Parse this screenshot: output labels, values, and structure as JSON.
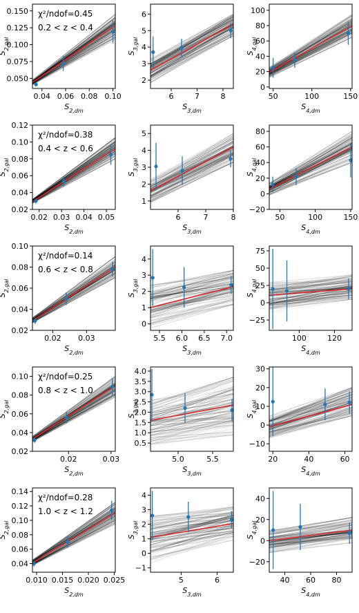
{
  "colors": {
    "points": "#1f77b4",
    "fit": "#d62728",
    "samples": "#000000",
    "frame": "#000000"
  },
  "chart_data": [
    {
      "type": "scatter",
      "row": 0,
      "col": 0,
      "annotation": {
        "chi": "χ²/ndof=0.45",
        "zrange": "0.2 < z < 0.4"
      },
      "xlabel": "S2,dm",
      "ylabel": "S2,gal",
      "xlim": [
        0.032,
        0.102
      ],
      "ylim": [
        0.035,
        0.16
      ],
      "xticks": [
        0.04,
        0.06,
        0.08,
        0.1
      ],
      "xticklabels": [
        "0.04",
        "0.06",
        "0.08",
        "0.10"
      ],
      "yticks": [
        0.05,
        0.075,
        0.1,
        0.125,
        0.15
      ],
      "yticklabels": [
        "0.050",
        "0.075",
        "0.100",
        "0.125",
        "0.150"
      ],
      "points": [
        {
          "x": 0.035,
          "y": 0.041,
          "err": 0.003
        },
        {
          "x": 0.058,
          "y": 0.072,
          "err": 0.011
        },
        {
          "x": 0.1,
          "y": 0.119,
          "err": 0.017
        }
      ],
      "fit": [
        [
          0.032,
          0.044
        ],
        [
          0.102,
          0.128
        ]
      ],
      "spread": {
        "low": [
          [
            0.032,
            0.04
          ],
          [
            0.102,
            0.108
          ]
        ],
        "high": [
          [
            0.032,
            0.048
          ],
          [
            0.102,
            0.145
          ]
        ]
      }
    },
    {
      "type": "scatter",
      "row": 0,
      "col": 1,
      "xlabel": "S3,dm",
      "ylabel": "S3,gal",
      "xlim": [
        5.2,
        8.4
      ],
      "ylim": [
        1.5,
        6.6
      ],
      "xticks": [
        6,
        7,
        8
      ],
      "xticklabels": [
        "6",
        "7",
        "8"
      ],
      "yticks": [
        2,
        3,
        4,
        5,
        6
      ],
      "yticklabels": [
        "2",
        "3",
        "4",
        "5",
        "6"
      ],
      "points": [
        {
          "x": 5.3,
          "y": 3.7,
          "err": 0.95
        },
        {
          "x": 6.4,
          "y": 3.95,
          "err": 0.55
        },
        {
          "x": 8.3,
          "y": 5.0,
          "err": 0.45
        }
      ],
      "fit": [
        [
          5.2,
          2.6
        ],
        [
          8.4,
          5.4
        ]
      ],
      "spread": {
        "low": [
          [
            5.2,
            1.8
          ],
          [
            8.4,
            4.7
          ]
        ],
        "high": [
          [
            5.2,
            3.3
          ],
          [
            8.4,
            6.0
          ]
        ]
      }
    },
    {
      "type": "scatter",
      "row": 0,
      "col": 2,
      "xlabel": "S4,dm",
      "ylabel": "S4,gal",
      "xlim": [
        45,
        152
      ],
      "ylim": [
        -2,
        108
      ],
      "xticks": [
        50,
        100,
        150
      ],
      "xticklabels": [
        "50",
        "100",
        "150"
      ],
      "yticks": [
        0,
        20,
        40,
        60,
        80,
        100
      ],
      "yticklabels": [
        "0",
        "20",
        "40",
        "60",
        "80",
        "100"
      ],
      "points": [
        {
          "x": 50,
          "y": 25,
          "err": 13
        },
        {
          "x": 78,
          "y": 35,
          "err": 10
        },
        {
          "x": 147,
          "y": 70,
          "err": 15
        }
      ],
      "fit": [
        [
          45,
          19
        ],
        [
          152,
          80
        ]
      ],
      "spread": {
        "low": [
          [
            45,
            12
          ],
          [
            152,
            65
          ]
        ],
        "high": [
          [
            45,
            26
          ],
          [
            152,
            95
          ]
        ]
      }
    },
    {
      "type": "scatter",
      "row": 1,
      "col": 0,
      "annotation": {
        "chi": "χ²/ndof=0.38",
        "zrange": "0.4 < z < 0.6"
      },
      "xlabel": "S2,dm",
      "ylabel": "S2,gal",
      "xlim": [
        0.017,
        0.054
      ],
      "ylim": [
        0.02,
        0.12
      ],
      "xticks": [
        0.02,
        0.03,
        0.04,
        0.05
      ],
      "xticklabels": [
        "0.02",
        "0.03",
        "0.04",
        "0.05"
      ],
      "yticks": [
        0.02,
        0.04,
        0.06,
        0.08,
        0.1,
        0.12
      ],
      "yticklabels": [
        "0.02",
        "0.04",
        "0.06",
        "0.08",
        "0.10",
        "0.12"
      ],
      "points": [
        {
          "x": 0.0185,
          "y": 0.03,
          "err": 0.003
        },
        {
          "x": 0.031,
          "y": 0.053,
          "err": 0.006
        },
        {
          "x": 0.052,
          "y": 0.085,
          "err": 0.012
        }
      ],
      "fit": [
        [
          0.017,
          0.029
        ],
        [
          0.054,
          0.092
        ]
      ],
      "spread": {
        "low": [
          [
            0.017,
            0.027
          ],
          [
            0.054,
            0.08
          ]
        ],
        "high": [
          [
            0.017,
            0.032
          ],
          [
            0.054,
            0.105
          ]
        ]
      }
    },
    {
      "type": "scatter",
      "row": 1,
      "col": 1,
      "xlabel": "S3,dm",
      "ylabel": "S3,gal",
      "xlim": [
        5.0,
        8.0
      ],
      "ylim": [
        0.5,
        5.5
      ],
      "xticks": [
        6,
        7,
        8
      ],
      "xticklabels": [
        "6",
        "7",
        "8"
      ],
      "yticks": [
        1,
        2,
        3,
        4,
        5
      ],
      "yticklabels": [
        "1",
        "2",
        "3",
        "4",
        "5"
      ],
      "points": [
        {
          "x": 5.2,
          "y": 3.05,
          "err": 1.4
        },
        {
          "x": 6.15,
          "y": 2.8,
          "err": 0.85
        },
        {
          "x": 7.9,
          "y": 3.5,
          "err": 0.5
        }
      ],
      "fit": [
        [
          5.0,
          1.6
        ],
        [
          8.0,
          4.2
        ]
      ],
      "spread": {
        "low": [
          [
            5.0,
            0.9
          ],
          [
            8.0,
            3.3
          ]
        ],
        "high": [
          [
            5.0,
            2.3
          ],
          [
            8.0,
            5.0
          ]
        ]
      }
    },
    {
      "type": "scatter",
      "row": 1,
      "col": 2,
      "xlabel": "S4,dm",
      "ylabel": "S4,gal",
      "xlim": [
        35,
        152
      ],
      "ylim": [
        -20,
        88
      ],
      "xticks": [
        50,
        100,
        150
      ],
      "xticklabels": [
        "50",
        "100",
        "150"
      ],
      "yticks": [
        -20,
        0,
        20,
        40,
        60,
        80
      ],
      "yticklabels": [
        "−20",
        "0",
        "20",
        "40",
        "60",
        "80"
      ],
      "points": [
        {
          "x": 40,
          "y": 12,
          "err": 10
        },
        {
          "x": 73,
          "y": 22,
          "err": 11
        },
        {
          "x": 150,
          "y": 43,
          "err": 22
        }
      ],
      "fit": [
        [
          35,
          6
        ],
        [
          152,
          60
        ]
      ],
      "spread": {
        "low": [
          [
            35,
            -2
          ],
          [
            152,
            40
          ]
        ],
        "high": [
          [
            35,
            14
          ],
          [
            152,
            80
          ]
        ]
      }
    },
    {
      "type": "scatter",
      "row": 2,
      "col": 0,
      "annotation": {
        "chi": "χ²/ndof=0.14",
        "zrange": "0.6 < z < 0.8"
      },
      "xlabel": "S2,dm",
      "ylabel": "S2,gal",
      "xlim": [
        0.014,
        0.0385
      ],
      "ylim": [
        0.02,
        0.1
      ],
      "xticks": [
        0.02,
        0.03
      ],
      "xticklabels": [
        "0.02",
        "0.03"
      ],
      "yticks": [
        0.02,
        0.04,
        0.06,
        0.08,
        0.1
      ],
      "yticklabels": [
        "0.02",
        "0.04",
        "0.06",
        "0.08",
        "0.10"
      ],
      "points": [
        {
          "x": 0.0148,
          "y": 0.029,
          "err": 0.003
        },
        {
          "x": 0.024,
          "y": 0.05,
          "err": 0.006
        },
        {
          "x": 0.0377,
          "y": 0.078,
          "err": 0.007
        }
      ],
      "fit": [
        [
          0.014,
          0.029
        ],
        [
          0.0385,
          0.08
        ]
      ],
      "spread": {
        "low": [
          [
            0.014,
            0.027
          ],
          [
            0.0385,
            0.07
          ]
        ],
        "high": [
          [
            0.014,
            0.032
          ],
          [
            0.0385,
            0.09
          ]
        ]
      }
    },
    {
      "type": "scatter",
      "row": 2,
      "col": 1,
      "xlabel": "S3,dm",
      "ylabel": "S3,gal",
      "xlim": [
        5.3,
        7.15
      ],
      "ylim": [
        -0.4,
        4.8
      ],
      "xticks": [
        5.5,
        6.0,
        6.5,
        7.0
      ],
      "xticklabels": [
        "5.5",
        "6.0",
        "6.5",
        "7.0"
      ],
      "yticks": [
        0,
        1,
        2,
        3,
        4
      ],
      "yticklabels": [
        "0",
        "1",
        "2",
        "3",
        "4"
      ],
      "points": [
        {
          "x": 5.35,
          "y": 2.85,
          "err": 1.75
        },
        {
          "x": 6.05,
          "y": 2.25,
          "err": 1.25
        },
        {
          "x": 7.1,
          "y": 2.4,
          "err": 0.55
        }
      ],
      "fit": [
        [
          5.3,
          1.0
        ],
        [
          7.15,
          2.3
        ]
      ],
      "spread": {
        "low": [
          [
            5.3,
            -0.3
          ],
          [
            7.15,
            1.2
          ]
        ],
        "high": [
          [
            5.3,
            2.4
          ],
          [
            7.15,
            3.3
          ]
        ]
      }
    },
    {
      "type": "scatter",
      "row": 2,
      "col": 2,
      "xlabel": "S4,dm",
      "ylabel": "S4,gal",
      "xlim": [
        83,
        130
      ],
      "ylim": [
        -40,
        82
      ],
      "xticks": [
        100,
        120
      ],
      "xticklabels": [
        "100",
        "120"
      ],
      "yticks": [
        -25,
        0,
        25,
        50,
        75
      ],
      "yticklabels": [
        "−25",
        "0",
        "25",
        "50",
        "75"
      ],
      "points": [
        {
          "x": 85,
          "y": 20,
          "err": 58
        },
        {
          "x": 93,
          "y": 17,
          "err": 44
        },
        {
          "x": 128,
          "y": 20,
          "err": 15
        }
      ],
      "fit": [
        [
          83,
          11
        ],
        [
          130,
          20
        ]
      ],
      "spread": {
        "low": [
          [
            83,
            -15
          ],
          [
            130,
            5
          ]
        ],
        "high": [
          [
            83,
            30
          ],
          [
            130,
            40
          ]
        ]
      }
    },
    {
      "type": "scatter",
      "row": 3,
      "col": 0,
      "annotation": {
        "chi": "χ²/ndof=0.25",
        "zrange": "0.8 < z < 1.0"
      },
      "xlabel": "S2,dm",
      "ylabel": "S2,gal",
      "xlim": [
        0.0115,
        0.031
      ],
      "ylim": [
        0.02,
        0.11
      ],
      "xticks": [
        0.02,
        0.03
      ],
      "xticklabels": [
        "0.02",
        "0.03"
      ],
      "yticks": [
        0.02,
        0.04,
        0.06,
        0.08,
        0.1
      ],
      "yticklabels": [
        "0.02",
        "0.04",
        "0.06",
        "0.08",
        "0.10"
      ],
      "points": [
        {
          "x": 0.012,
          "y": 0.032,
          "err": 0.003
        },
        {
          "x": 0.0195,
          "y": 0.056,
          "err": 0.006
        },
        {
          "x": 0.0303,
          "y": 0.089,
          "err": 0.009
        }
      ],
      "fit": [
        [
          0.0115,
          0.033
        ],
        [
          0.031,
          0.09
        ]
      ],
      "spread": {
        "low": [
          [
            0.0115,
            0.03
          ],
          [
            0.031,
            0.078
          ]
        ],
        "high": [
          [
            0.0115,
            0.036
          ],
          [
            0.031,
            0.1
          ]
        ]
      }
    },
    {
      "type": "scatter",
      "row": 3,
      "col": 1,
      "xlabel": "S3,dm",
      "ylabel": "S3,gal",
      "xlim": [
        4.6,
        5.8
      ],
      "ylim": [
        0.1,
        4.2
      ],
      "xticks": [
        5.0,
        5.5
      ],
      "xticklabels": [
        "5.0",
        "5.5"
      ],
      "yticks": [
        0.5,
        1.0,
        1.5,
        2.0,
        2.5,
        3.0,
        3.5,
        4.0
      ],
      "yticklabels": [
        "0.5",
        "1.0",
        "1.5",
        "2.0",
        "2.5",
        "3.0",
        "3.5",
        "4.0"
      ],
      "points": [
        {
          "x": 4.62,
          "y": 2.85,
          "err": 1.25
        },
        {
          "x": 5.1,
          "y": 2.2,
          "err": 0.72
        },
        {
          "x": 5.78,
          "y": 2.1,
          "err": 0.55
        }
      ],
      "fit": [
        [
          4.6,
          1.6
        ],
        [
          5.8,
          2.35
        ]
      ],
      "spread": {
        "low": [
          [
            4.6,
            0.4
          ],
          [
            5.8,
            0.9
          ]
        ],
        "high": [
          [
            4.6,
            2.6
          ],
          [
            5.8,
            3.7
          ]
        ]
      }
    },
    {
      "type": "scatter",
      "row": 3,
      "col": 2,
      "xlabel": "S4,dm",
      "ylabel": "S4,gal",
      "xlim": [
        18,
        64
      ],
      "ylim": [
        -14,
        31
      ],
      "xticks": [
        20,
        40,
        60
      ],
      "xticklabels": [
        "20",
        "40",
        "60"
      ],
      "yticks": [
        -10,
        0,
        10,
        20,
        30
      ],
      "yticklabels": [
        "−10",
        "0",
        "10",
        "20",
        "30"
      ],
      "points": [
        {
          "x": 20,
          "y": 12.5,
          "err": 18.5
        },
        {
          "x": 49,
          "y": 11,
          "err": 8.5
        },
        {
          "x": 62.5,
          "y": 12,
          "err": 6
        }
      ],
      "fit": [
        [
          18,
          -1
        ],
        [
          64,
          11
        ]
      ],
      "spread": {
        "low": [
          [
            18,
            -7
          ],
          [
            64,
            5
          ]
        ],
        "high": [
          [
            18,
            5
          ],
          [
            64,
            20
          ]
        ]
      }
    },
    {
      "type": "scatter",
      "row": 4,
      "col": 0,
      "annotation": {
        "chi": "χ²/ndof=0.28",
        "zrange": "1.0 < z < 1.2"
      },
      "xlabel": "S2,dm",
      "ylabel": "S2,gal",
      "xlim": [
        0.0092,
        0.0252
      ],
      "ylim": [
        0.028,
        0.145
      ],
      "xticks": [
        0.01,
        0.015,
        0.02,
        0.025
      ],
      "xticklabels": [
        "0.010",
        "0.015",
        "0.020",
        "0.025"
      ],
      "yticks": [
        0.04,
        0.06,
        0.08,
        0.1,
        0.12,
        0.14
      ],
      "yticklabels": [
        "0.04",
        "0.06",
        "0.08",
        "0.10",
        "0.12",
        "0.14"
      ],
      "points": [
        {
          "x": 0.0095,
          "y": 0.04,
          "err": 0.004
        },
        {
          "x": 0.016,
          "y": 0.07,
          "err": 0.008
        },
        {
          "x": 0.0245,
          "y": 0.114,
          "err": 0.013
        }
      ],
      "fit": [
        [
          0.0092,
          0.041
        ],
        [
          0.0252,
          0.11
        ]
      ],
      "spread": {
        "low": [
          [
            0.0092,
            0.037
          ],
          [
            0.0252,
            0.095
          ]
        ],
        "high": [
          [
            0.0092,
            0.045
          ],
          [
            0.0252,
            0.125
          ]
        ]
      }
    },
    {
      "type": "scatter",
      "row": 4,
      "col": 1,
      "xlabel": "S3,dm",
      "ylabel": "S3,gal",
      "xlim": [
        4.15,
        6.45
      ],
      "ylim": [
        -1.3,
        4.5
      ],
      "xticks": [
        5,
        6
      ],
      "xticklabels": [
        "5",
        "6"
      ],
      "yticks": [
        -1,
        0,
        1,
        2,
        3,
        4
      ],
      "yticklabels": [
        "−1",
        "0",
        "1",
        "2",
        "3",
        "4"
      ],
      "points": [
        {
          "x": 4.2,
          "y": 2.6,
          "err": 1.7
        },
        {
          "x": 5.2,
          "y": 2.5,
          "err": 1.05
        },
        {
          "x": 6.4,
          "y": 2.3,
          "err": 0.6
        }
      ],
      "fit": [
        [
          4.15,
          1.1
        ],
        [
          6.45,
          2.05
        ]
      ],
      "spread": {
        "low": [
          [
            4.15,
            -0.7
          ],
          [
            6.45,
            0.9
          ]
        ],
        "high": [
          [
            4.15,
            2.6
          ],
          [
            6.45,
            3.2
          ]
        ]
      }
    },
    {
      "type": "scatter",
      "row": 4,
      "col": 2,
      "xlabel": "S4,dm",
      "ylabel": "S4,gal",
      "xlim": [
        28,
        92
      ],
      "ylim": [
        -30,
        50
      ],
      "xticks": [
        40,
        60,
        80
      ],
      "xticklabels": [
        "40",
        "60",
        "80"
      ],
      "yticks": [
        -20,
        0,
        20,
        40
      ],
      "yticklabels": [
        "−20",
        "0",
        "20",
        "40"
      ],
      "points": [
        {
          "x": 31,
          "y": 10,
          "err": 37
        },
        {
          "x": 52,
          "y": 13,
          "err": 22
        },
        {
          "x": 90,
          "y": 7,
          "err": 10
        }
      ],
      "fit": [
        [
          28,
          0
        ],
        [
          92,
          10
        ]
      ],
      "spread": {
        "low": [
          [
            28,
            -12
          ],
          [
            92,
            -2
          ]
        ],
        "high": [
          [
            28,
            10
          ],
          [
            92,
            22
          ]
        ]
      }
    }
  ]
}
